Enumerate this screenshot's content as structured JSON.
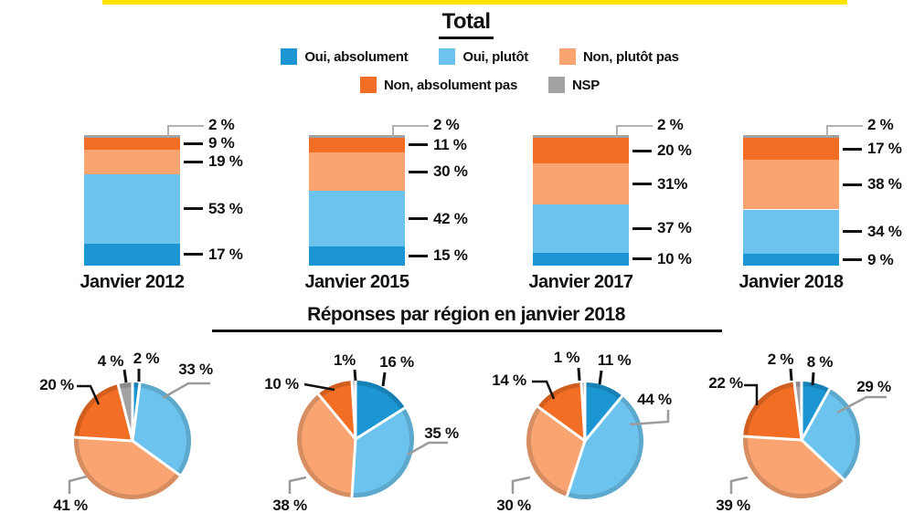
{
  "page": {
    "title": "Total",
    "section_title": "Réponses par région en janvier 2018"
  },
  "colors": {
    "oui_absolument": "#1b96d2",
    "oui_plutot": "#6cc4ee",
    "non_plutot_pas": "#f9a471",
    "non_absolument_pas": "#f26e24",
    "nsp": "#a3a1a4",
    "accent_yellow": "#ffe400",
    "text": "#111111"
  },
  "legend": {
    "rows": [
      [
        {
          "label": "Oui, absolument",
          "color": "#1b96d2"
        },
        {
          "label": "Oui, plutôt",
          "color": "#6cc4ee"
        },
        {
          "label": "Non, plutôt pas",
          "color": "#f9a471"
        }
      ],
      [
        {
          "label": "Non, absolument pas",
          "color": "#f26e24"
        },
        {
          "label": "NSP",
          "color": "#a3a1a4"
        }
      ]
    ]
  },
  "chart_data": [
    {
      "type": "bar",
      "stacked": true,
      "title": "Total",
      "unit": "%",
      "ylim": [
        0,
        100
      ],
      "grid": false,
      "categories": [
        "Janvier 2012",
        "Janvier 2015",
        "Janvier 2017",
        "Janvier 2018"
      ],
      "series": [
        {
          "name": "Oui, absolument",
          "color": "#1b96d2",
          "values": [
            17,
            15,
            10,
            9
          ],
          "labels": [
            "17 %",
            "15 %",
            "10 %",
            "9 %"
          ]
        },
        {
          "name": "Oui, plutôt",
          "color": "#6cc4ee",
          "values": [
            53,
            42,
            37,
            34
          ],
          "labels": [
            "53 %",
            "42 %",
            "37 %",
            "34 %"
          ]
        },
        {
          "name": "Non, plutôt pas",
          "color": "#f9a471",
          "values": [
            19,
            30,
            31,
            38
          ],
          "labels": [
            "19 %",
            "30 %",
            "31%",
            "38 %"
          ]
        },
        {
          "name": "Non, absolument pas",
          "color": "#f26e24",
          "values": [
            9,
            11,
            20,
            17
          ],
          "labels": [
            "9 %",
            "11 %",
            "20 %",
            "17 %"
          ]
        },
        {
          "name": "NSP",
          "color": "#a3a1a4",
          "values": [
            2,
            2,
            2,
            2
          ],
          "labels": [
            "2 %",
            "2 %",
            "2 %",
            "2 %"
          ]
        }
      ]
    },
    {
      "type": "pie",
      "title": "Réponses par région en janvier 2018",
      "unit": "%",
      "slice_order": [
        "Oui, absolument",
        "Oui, plutôt",
        "Non, plutôt pas",
        "Non, absolument pas",
        "NSP"
      ],
      "colors": [
        "#1b96d2",
        "#6cc4ee",
        "#f9a471",
        "#f26e24",
        "#a3a1a4"
      ],
      "pies": [
        {
          "values": [
            2,
            33,
            41,
            20,
            4
          ],
          "labels": [
            "2 %",
            "33 %",
            "41 %",
            "20 %",
            "4 %"
          ]
        },
        {
          "values": [
            16,
            35,
            38,
            10,
            1
          ],
          "labels": [
            "16 %",
            "35 %",
            "38 %",
            "10 %",
            "1%"
          ]
        },
        {
          "values": [
            11,
            44,
            30,
            14,
            1
          ],
          "labels": [
            "11 %",
            "44 %",
            "30 %",
            "14 %",
            "1 %"
          ]
        },
        {
          "values": [
            8,
            29,
            39,
            22,
            2
          ],
          "labels": [
            "8 %",
            "29 %",
            "39 %",
            "22 %",
            "2 %"
          ]
        }
      ]
    }
  ]
}
